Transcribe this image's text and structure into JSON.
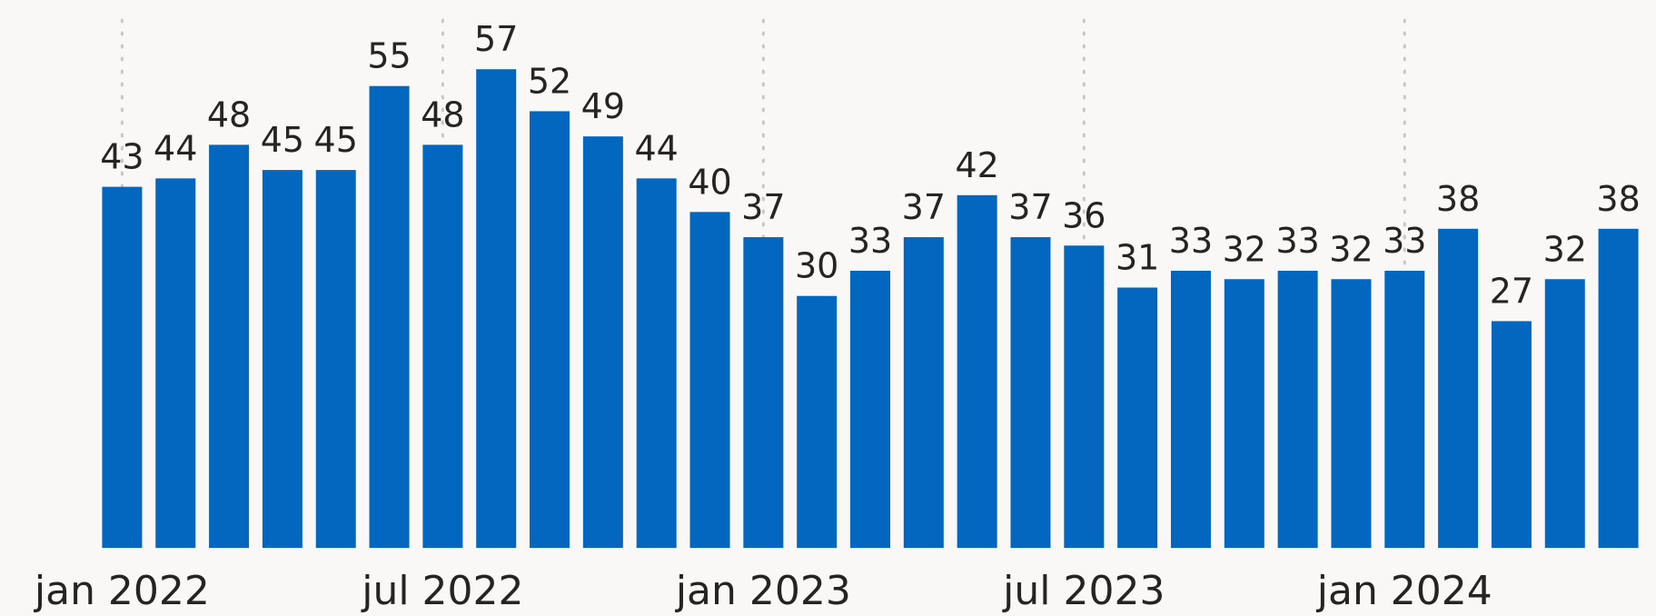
{
  "colors": {
    "background": "#f9f8f7",
    "bar": "#0467bf",
    "text": "#252423",
    "gridline": "#c9c7c5"
  },
  "chart_data": {
    "type": "bar",
    "title": "",
    "xlabel": "",
    "ylabel": "",
    "ylim": [
      0,
      62
    ],
    "grid": "vertical dotted gridlines at labeled x ticks",
    "legend": "none",
    "categories": [
      "2022-01",
      "2022-02",
      "2022-03",
      "2022-04",
      "2022-05",
      "2022-06",
      "2022-07",
      "2022-08",
      "2022-09",
      "2022-10",
      "2022-11",
      "2022-12",
      "2023-01",
      "2023-02",
      "2023-03",
      "2023-04",
      "2023-05",
      "2023-06",
      "2023-07",
      "2023-08",
      "2023-09",
      "2023-10",
      "2023-11",
      "2023-12",
      "2024-01",
      "2024-02",
      "2024-03",
      "2024-04",
      "2024-05"
    ],
    "values": [
      43,
      44,
      48,
      45,
      45,
      55,
      48,
      57,
      52,
      49,
      44,
      40,
      37,
      30,
      33,
      37,
      42,
      37,
      36,
      31,
      33,
      32,
      33,
      32,
      33,
      38,
      27,
      32,
      38
    ],
    "data_labels": [
      "43",
      "44",
      "48",
      "45",
      "45",
      "55",
      "48",
      "57",
      "52",
      "49",
      "44",
      "40",
      "37",
      "30",
      "33",
      "37",
      "42",
      "37",
      "36",
      "31",
      "33",
      "32",
      "33",
      "32",
      "33",
      "38",
      "27",
      "32",
      "38"
    ],
    "x_ticks": [
      {
        "label": "jan 2022",
        "index": 0
      },
      {
        "label": "jul 2022",
        "index": 6
      },
      {
        "label": "jan 2023",
        "index": 12
      },
      {
        "label": "jul 2023",
        "index": 18
      },
      {
        "label": "jan 2024",
        "index": 24
      }
    ]
  }
}
